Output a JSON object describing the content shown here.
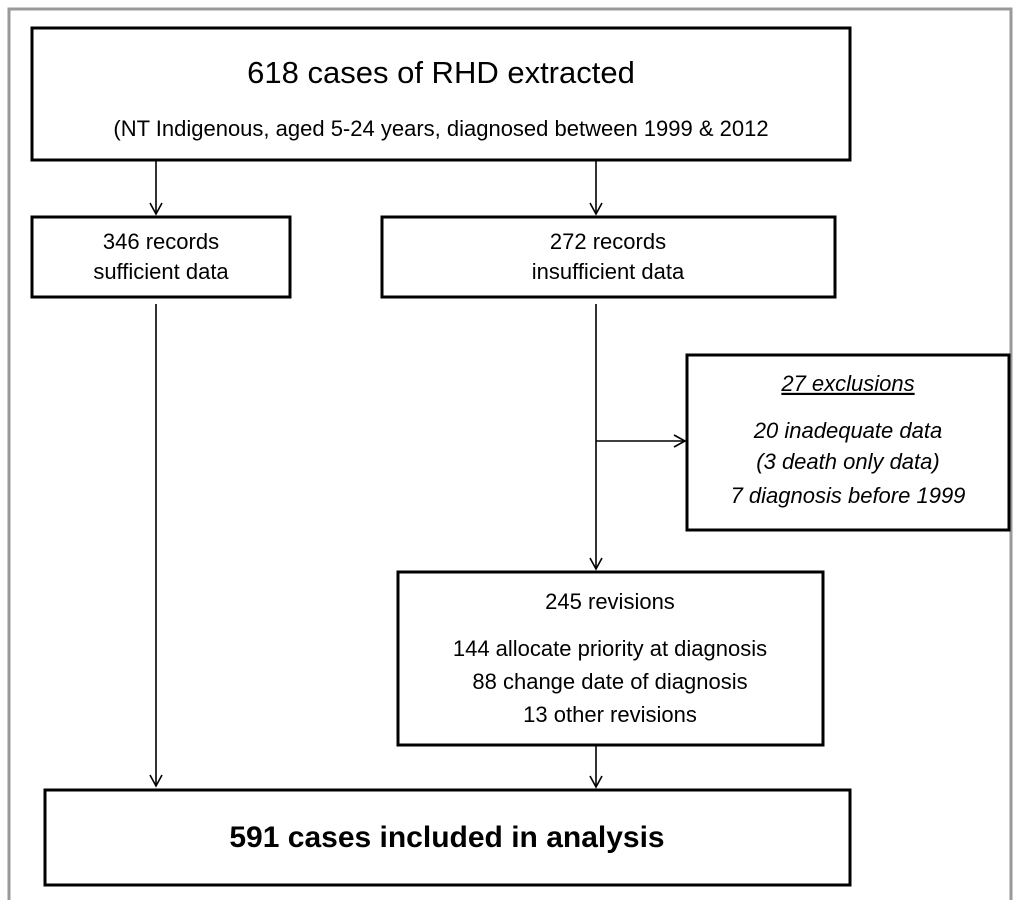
{
  "nodes": [
    {
      "lines": [
        "618 cases of RHD extracted",
        "(NT Indigenous, aged 5-24 years, diagnosed between 1999 & 2012"
      ]
    },
    {
      "lines": [
        "346 records",
        "sufficient data"
      ]
    },
    {
      "lines": [
        "272 records",
        "insufficient data"
      ]
    },
    {
      "lines": [
        "27 exclusions",
        "20 inadequate data",
        "(3 death only data)",
        "7 diagnosis before 1999"
      ]
    },
    {
      "lines": [
        "245 revisions",
        "144 allocate priority at diagnosis",
        "88 change date of diagnosis",
        "13 other revisions"
      ]
    },
    {
      "lines": [
        "591 cases included in analysis"
      ]
    }
  ]
}
